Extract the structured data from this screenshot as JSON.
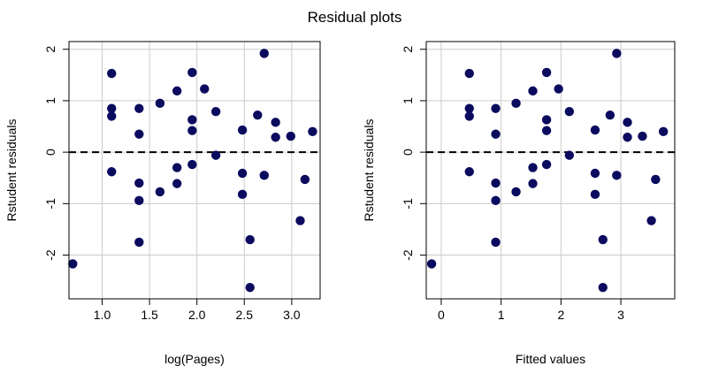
{
  "title": "Residual plots",
  "colors": {
    "point": "#0a0a5e",
    "grid": "#cccccc",
    "zero_line": "#000000"
  },
  "chart_data": [
    {
      "type": "scatter",
      "xlabel": "log(Pages)",
      "ylabel": "Rstudent residuals",
      "xlim": [
        0.65,
        3.3
      ],
      "ylim": [
        -2.85,
        2.15
      ],
      "xticks": [
        1.0,
        1.5,
        2.0,
        2.5,
        3.0
      ],
      "xtick_labels": [
        "1.0",
        "1.5",
        "2.0",
        "2.5",
        "3.0"
      ],
      "yticks": [
        -2,
        -1,
        0,
        1,
        2
      ],
      "ytick_labels": [
        "-2",
        "-1",
        "0",
        "1",
        "2"
      ],
      "grid": true,
      "reference_line": {
        "y": 0,
        "style": "dashed"
      },
      "points": [
        {
          "x": 0.69,
          "y": -2.17
        },
        {
          "x": 1.1,
          "y": 1.53
        },
        {
          "x": 1.1,
          "y": 0.85
        },
        {
          "x": 1.1,
          "y": 0.7
        },
        {
          "x": 1.1,
          "y": -0.38
        },
        {
          "x": 1.39,
          "y": 0.85
        },
        {
          "x": 1.39,
          "y": 0.35
        },
        {
          "x": 1.39,
          "y": -0.6
        },
        {
          "x": 1.39,
          "y": -0.94
        },
        {
          "x": 1.39,
          "y": -1.75
        },
        {
          "x": 1.61,
          "y": 0.95
        },
        {
          "x": 1.61,
          "y": -0.77
        },
        {
          "x": 1.79,
          "y": 1.19
        },
        {
          "x": 1.79,
          "y": -0.3
        },
        {
          "x": 1.79,
          "y": -0.61
        },
        {
          "x": 1.95,
          "y": 1.55
        },
        {
          "x": 1.95,
          "y": 0.63
        },
        {
          "x": 1.95,
          "y": 0.42
        },
        {
          "x": 1.95,
          "y": -0.24
        },
        {
          "x": 2.08,
          "y": 1.23
        },
        {
          "x": 2.2,
          "y": 0.79
        },
        {
          "x": 2.2,
          "y": -0.06
        },
        {
          "x": 2.48,
          "y": 0.43
        },
        {
          "x": 2.48,
          "y": -0.41
        },
        {
          "x": 2.48,
          "y": -0.82
        },
        {
          "x": 2.56,
          "y": -1.7
        },
        {
          "x": 2.56,
          "y": -2.63
        },
        {
          "x": 2.64,
          "y": 0.72
        },
        {
          "x": 2.71,
          "y": 1.92
        },
        {
          "x": 2.71,
          "y": -0.45
        },
        {
          "x": 2.83,
          "y": 0.58
        },
        {
          "x": 2.83,
          "y": 0.29
        },
        {
          "x": 2.99,
          "y": 0.31
        },
        {
          "x": 3.09,
          "y": -1.33
        },
        {
          "x": 3.14,
          "y": -0.53
        },
        {
          "x": 3.22,
          "y": 0.4
        }
      ]
    },
    {
      "type": "scatter",
      "xlabel": "Fitted values",
      "ylabel": "Rstudent residuals",
      "xlim": [
        -0.25,
        3.9
      ],
      "ylim": [
        -2.85,
        2.15
      ],
      "xticks": [
        0,
        1,
        2,
        3
      ],
      "xtick_labels": [
        "0",
        "1",
        "2",
        "3"
      ],
      "yticks": [
        -2,
        -1,
        0,
        1,
        2
      ],
      "ytick_labels": [
        "-2",
        "-1",
        "0",
        "1",
        "2"
      ],
      "grid": true,
      "reference_line": {
        "y": 0,
        "style": "dashed"
      },
      "points": [
        {
          "x": -0.16,
          "y": -2.17
        },
        {
          "x": 0.47,
          "y": 1.53
        },
        {
          "x": 0.47,
          "y": 0.85
        },
        {
          "x": 0.47,
          "y": 0.7
        },
        {
          "x": 0.47,
          "y": -0.38
        },
        {
          "x": 0.91,
          "y": 0.85
        },
        {
          "x": 0.91,
          "y": 0.35
        },
        {
          "x": 0.91,
          "y": -0.6
        },
        {
          "x": 0.91,
          "y": -0.94
        },
        {
          "x": 0.91,
          "y": -1.75
        },
        {
          "x": 1.25,
          "y": 0.95
        },
        {
          "x": 1.25,
          "y": -0.77
        },
        {
          "x": 1.53,
          "y": 1.19
        },
        {
          "x": 1.53,
          "y": -0.3
        },
        {
          "x": 1.53,
          "y": -0.61
        },
        {
          "x": 1.76,
          "y": 1.55
        },
        {
          "x": 1.76,
          "y": 0.63
        },
        {
          "x": 1.76,
          "y": 0.42
        },
        {
          "x": 1.76,
          "y": -0.24
        },
        {
          "x": 1.96,
          "y": 1.23
        },
        {
          "x": 2.14,
          "y": 0.79
        },
        {
          "x": 2.14,
          "y": -0.06
        },
        {
          "x": 2.57,
          "y": 0.43
        },
        {
          "x": 2.57,
          "y": -0.41
        },
        {
          "x": 2.57,
          "y": -0.82
        },
        {
          "x": 2.7,
          "y": -1.7
        },
        {
          "x": 2.7,
          "y": -2.63
        },
        {
          "x": 2.82,
          "y": 0.72
        },
        {
          "x": 2.93,
          "y": 1.92
        },
        {
          "x": 2.93,
          "y": -0.45
        },
        {
          "x": 3.11,
          "y": 0.58
        },
        {
          "x": 3.11,
          "y": 0.29
        },
        {
          "x": 3.36,
          "y": 0.31
        },
        {
          "x": 3.51,
          "y": -1.33
        },
        {
          "x": 3.58,
          "y": -0.53
        },
        {
          "x": 3.71,
          "y": 0.4
        }
      ]
    }
  ]
}
